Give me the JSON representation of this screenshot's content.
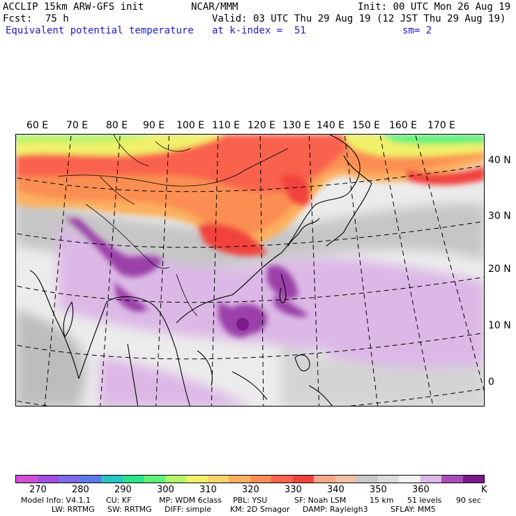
{
  "header": {
    "model": "ACCLIP 15km ARW-GFS init",
    "org": "NCAR/MMM",
    "init": "Init: 00 UTC Mon 26 Aug 19",
    "fcst_label": "Fcst:",
    "fcst_value": "75 h",
    "valid": "Valid: 03 UTC Thu 29 Aug 19 (12 JST Thu 29 Aug 19)",
    "field": "Equivalent potential temperature",
    "level": "at k-index =  51",
    "smooth": "sm= 2"
  },
  "map": {
    "lon_labels": [
      "60 E",
      "70 E",
      "80 E",
      "90 E",
      "100 E",
      "110 E",
      "120 E",
      "130 E",
      "140 E",
      "150 E",
      "160 E",
      "170 E"
    ],
    "lat_labels": [
      "40 N",
      "30 N",
      "20 N",
      "10 N",
      "0"
    ]
  },
  "colorbar": {
    "colors": [
      "#d14fd6",
      "#a14fe0",
      "#7d6be6",
      "#5b7ae8",
      "#28c3c3",
      "#2ce08c",
      "#5ef07a",
      "#b4f56c",
      "#f0f06a",
      "#fad46a",
      "#fbb060",
      "#fb8f53",
      "#f9624d",
      "#f1423e",
      "#f8a88a",
      "#f2c0a6",
      "#c9c9c9",
      "#dcdcdc",
      "#f2f2f2",
      "#dcb8e6",
      "#a84cb8",
      "#7a1a8c"
    ],
    "ticks": [
      "270",
      "280",
      "290",
      "300",
      "310",
      "320",
      "330",
      "340",
      "350",
      "360"
    ],
    "unit": "K"
  },
  "footer": {
    "line1": [
      "Model Info: V4.1.1",
      "CU: KF",
      "MP: WDM 6class",
      "PBL: YSU",
      "SF: Noah LSM",
      "15 km",
      "51 levels",
      "90 sec"
    ],
    "line2": [
      "LW: RRTMG",
      "SW: RRTMG",
      "DIFF: simple",
      "KM: 2D Smagor",
      "DAMP: Rayleigh3",
      "SFLAY: MM5"
    ]
  }
}
